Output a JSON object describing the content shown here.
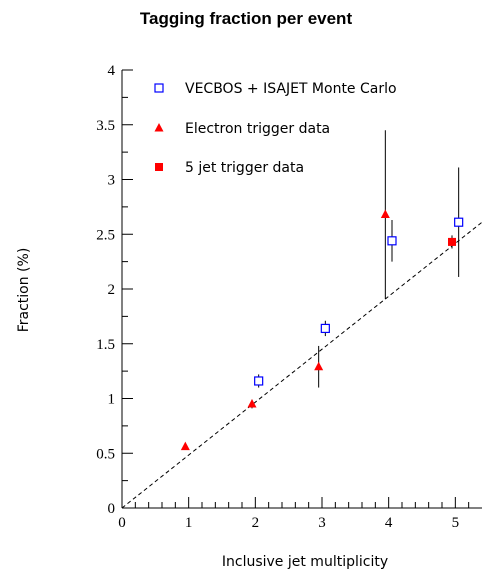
{
  "chart_data": {
    "type": "scatter",
    "title": "Tagging fraction per event",
    "xlabel": "Inclusive jet multiplicity",
    "ylabel": "Fraction (%)",
    "xlim": [
      0,
      5.4
    ],
    "ylim": [
      0,
      4
    ],
    "x_ticks": [
      0,
      1,
      2,
      3,
      4,
      5
    ],
    "x_tick_labels": [
      "0",
      "1",
      "2",
      "3",
      "4",
      "5"
    ],
    "y_ticks": [
      0,
      0.5,
      1,
      1.5,
      2,
      2.5,
      3,
      3.5,
      4
    ],
    "y_tick_labels": [
      "0",
      "0.5",
      "1",
      "1.5",
      "2",
      "2.5",
      "3",
      "3.5",
      "4"
    ],
    "legend_position": "top-left",
    "series": [
      {
        "name": "VECBOS + ISAJET Monte Carlo",
        "marker": "open-square",
        "color": "#0000ff",
        "points": [
          {
            "x": 2.05,
            "y": 1.16,
            "err": 0.06
          },
          {
            "x": 3.05,
            "y": 1.64,
            "err": 0.07
          },
          {
            "x": 4.05,
            "y": 2.44,
            "err": 0.19
          },
          {
            "x": 5.05,
            "y": 2.61,
            "err": 0.5
          }
        ]
      },
      {
        "name": "Electron trigger data",
        "marker": "filled-triangle",
        "color": "#ff0000",
        "points": [
          {
            "x": 0.95,
            "y": 0.56,
            "err": 0.01
          },
          {
            "x": 1.95,
            "y": 0.95,
            "err": 0.04
          },
          {
            "x": 2.95,
            "y": 1.29,
            "err": 0.19
          },
          {
            "x": 3.95,
            "y": 2.68,
            "err": 0.77
          }
        ]
      },
      {
        "name": "5 jet trigger data",
        "marker": "filled-square",
        "color": "#ff0000",
        "points": [
          {
            "x": 4.95,
            "y": 2.43,
            "err": 0.06
          }
        ]
      }
    ],
    "fit_line": {
      "style": "dashed",
      "color": "#000000",
      "x": [
        0,
        5.4
      ],
      "y": [
        0,
        2.61
      ]
    }
  }
}
